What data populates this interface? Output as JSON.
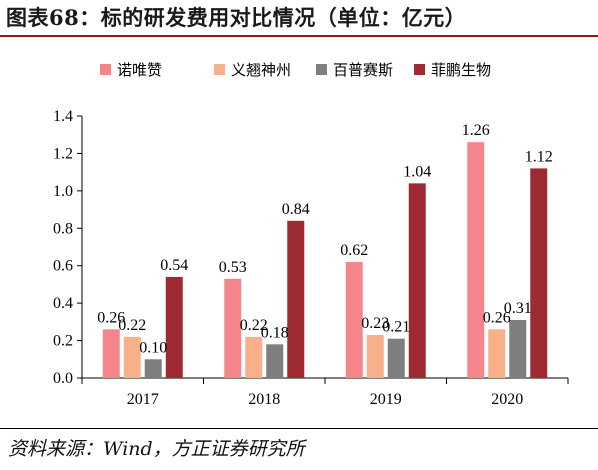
{
  "header": {
    "title": "图表68：标的研发费用对比情况（单位：亿元）"
  },
  "footer": {
    "source": "资料来源：Wind，方正证券研究所"
  },
  "chart_data": {
    "type": "bar",
    "categories": [
      "2017",
      "2018",
      "2019",
      "2020"
    ],
    "series": [
      {
        "name": "诺唯赞",
        "color": "#f4858a",
        "values": [
          0.26,
          0.53,
          0.62,
          1.26
        ]
      },
      {
        "name": "义翘神州",
        "color": "#f8b08a",
        "values": [
          0.22,
          0.22,
          0.23,
          0.26
        ]
      },
      {
        "name": "百普赛斯",
        "color": "#7f7f7f",
        "values": [
          0.1,
          0.18,
          0.21,
          0.31
        ]
      },
      {
        "name": "菲鹏生物",
        "color": "#9e2b33",
        "values": [
          0.54,
          0.84,
          1.04,
          1.12
        ]
      }
    ],
    "data_labels": [
      [
        "0.26",
        "0.53",
        "0.62",
        "1.26"
      ],
      [
        "0.22",
        "0.22",
        "0.23",
        "0.26"
      ],
      [
        "0.10",
        "0.18",
        "0.21",
        "0.31"
      ],
      [
        "0.54",
        "0.84",
        "1.04",
        "1.12"
      ]
    ],
    "y_ticks": [
      "0.0",
      "0.2",
      "0.4",
      "0.6",
      "0.8",
      "1.0",
      "1.2",
      "1.4"
    ],
    "ylim": [
      0,
      1.4
    ],
    "legend_position": "top",
    "grid": false
  }
}
